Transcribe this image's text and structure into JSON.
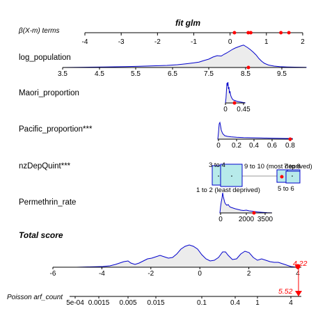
{
  "chart_data": {
    "type": "nomogram",
    "title": "fit glm",
    "beta_axis": {
      "label": "β(X-m) terms",
      "min": -4,
      "max": 2,
      "ticks": [
        -4,
        -3,
        -2,
        -1,
        0,
        1,
        2
      ],
      "tick_labels": [
        "-4",
        "-3",
        "-2",
        "-1",
        "0",
        "1",
        "2"
      ],
      "points": [
        0.12,
        0.5,
        0.57,
        1.4,
        1.62
      ]
    },
    "variables": [
      {
        "name": "log_population",
        "ticks": [
          "3.5",
          "4.5",
          "5.5",
          "6.5",
          "7.5",
          "8.5",
          "9.5"
        ],
        "obs_value": 8.6
      },
      {
        "name": "Maori_proportion",
        "ticks": [
          "0",
          "0.45"
        ],
        "obs_value": 0.3
      },
      {
        "name": "Pacific_proportion***",
        "ticks": [
          "0",
          "0.2",
          "0.4",
          "0.6",
          "0.8"
        ],
        "obs_value": 0.8
      },
      {
        "name": "nzDepQuint***",
        "categories": [
          "1 to 2 (least deprived)",
          "3 to 4",
          "5 to 6",
          "7 to 8",
          "9 to 10 (most deprived)"
        ],
        "observed": "5 to 6"
      },
      {
        "name": "Permethrin_rate",
        "ticks": [
          "0",
          "2000",
          "3500"
        ],
        "obs_value": 2800
      }
    ],
    "total_score": {
      "label": "Total score",
      "min": -6,
      "max": 4,
      "ticks": [
        -6,
        -4,
        -2,
        0,
        2,
        4
      ],
      "tick_labels": [
        "-6",
        "-4",
        "-2",
        "0",
        "2",
        "4"
      ],
      "value": 4.22,
      "value_label": "4.22"
    },
    "response": {
      "label": "Poisson  arf_count",
      "ticks": [
        "5e-04",
        "0.0015",
        "0.005",
        "0.015",
        "0.1",
        "0.4",
        "1",
        "4"
      ],
      "tick_values": [
        0.0005,
        0.0015,
        0.005,
        0.015,
        0.1,
        0.4,
        1,
        4
      ],
      "value": 5.52,
      "value_label": "5.52"
    },
    "colors": {
      "density": "#0000cc",
      "density_fill": "#ececec",
      "observed": "#ff0000",
      "category_box": "#b7eaea"
    }
  }
}
